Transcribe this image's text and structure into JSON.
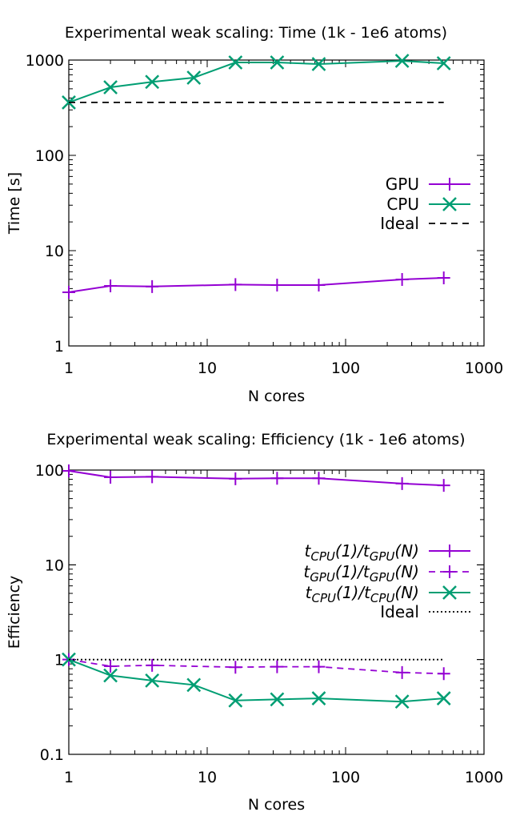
{
  "chart_data": [
    {
      "type": "line",
      "title": "Experimental weak scaling: Time (1k - 1e6 atoms)",
      "xlabel": "N cores",
      "ylabel": "Time [s]",
      "xscale": "log",
      "yscale": "log",
      "xlim": [
        1,
        1000
      ],
      "ylim": [
        1,
        1000
      ],
      "xticks": [
        "1",
        "10",
        "100",
        "1000"
      ],
      "yticks": [
        "1",
        "10",
        "100",
        "1000"
      ],
      "grid": false,
      "legend_placement": "right",
      "series": [
        {
          "name": "GPU",
          "color": "#9400d3",
          "style": "solid",
          "marker": "plus",
          "x": [
            1,
            2,
            4,
            16,
            32,
            64,
            256,
            512
          ],
          "y": [
            3.66,
            4.27,
            4.2,
            4.4,
            4.35,
            4.35,
            4.98,
            5.18
          ]
        },
        {
          "name": "CPU",
          "color": "#009e73",
          "style": "solid",
          "marker": "cross",
          "x": [
            1,
            2,
            4,
            8,
            16,
            32,
            64,
            256,
            512
          ],
          "y": [
            359,
            518,
            590,
            653,
            944,
            944,
            908,
            980,
            925
          ]
        },
        {
          "name": "Ideal",
          "color": "#000000",
          "style": "dashed",
          "marker": "none",
          "x": [
            1,
            512
          ],
          "y": [
            359,
            359
          ]
        }
      ]
    },
    {
      "type": "line",
      "title": "Experimental weak scaling: Efficiency (1k - 1e6 atoms)",
      "xlabel": "N cores",
      "ylabel": "Efficiency",
      "xscale": "log",
      "yscale": "log",
      "xlim": [
        1,
        1000
      ],
      "ylim": [
        0.1,
        100
      ],
      "xticks": [
        "1",
        "10",
        "100",
        "1000"
      ],
      "yticks": [
        "0.1",
        "1",
        "10",
        "100"
      ],
      "grid": false,
      "legend_placement": "right",
      "series": [
        {
          "name": "t_{CPU}(1)/t_{GPU}(N)",
          "color": "#9400d3",
          "style": "solid",
          "marker": "plus",
          "x": [
            1,
            2,
            4,
            16,
            32,
            64,
            256,
            512
          ],
          "y": [
            98,
            84,
            85,
            81,
            82,
            82,
            72,
            69
          ]
        },
        {
          "name": "t_{GPU}(1)/t_{GPU}(N)",
          "color": "#9400d3",
          "style": "dashed",
          "marker": "plus",
          "x": [
            1,
            2,
            4,
            16,
            32,
            64,
            256,
            512
          ],
          "y": [
            1,
            0.85,
            0.87,
            0.83,
            0.84,
            0.84,
            0.73,
            0.71
          ]
        },
        {
          "name": "t_{CPU}(1)/t_{CPU}(N)",
          "color": "#009e73",
          "style": "solid",
          "marker": "cross",
          "x": [
            1,
            2,
            4,
            8,
            16,
            32,
            64,
            256,
            512
          ],
          "y": [
            1,
            0.68,
            0.6,
            0.54,
            0.37,
            0.38,
            0.39,
            0.36,
            0.39
          ]
        },
        {
          "name": "Ideal",
          "color": "#000000",
          "style": "dotted",
          "marker": "none",
          "x": [
            1,
            512
          ],
          "y": [
            1,
            1
          ]
        }
      ]
    }
  ]
}
